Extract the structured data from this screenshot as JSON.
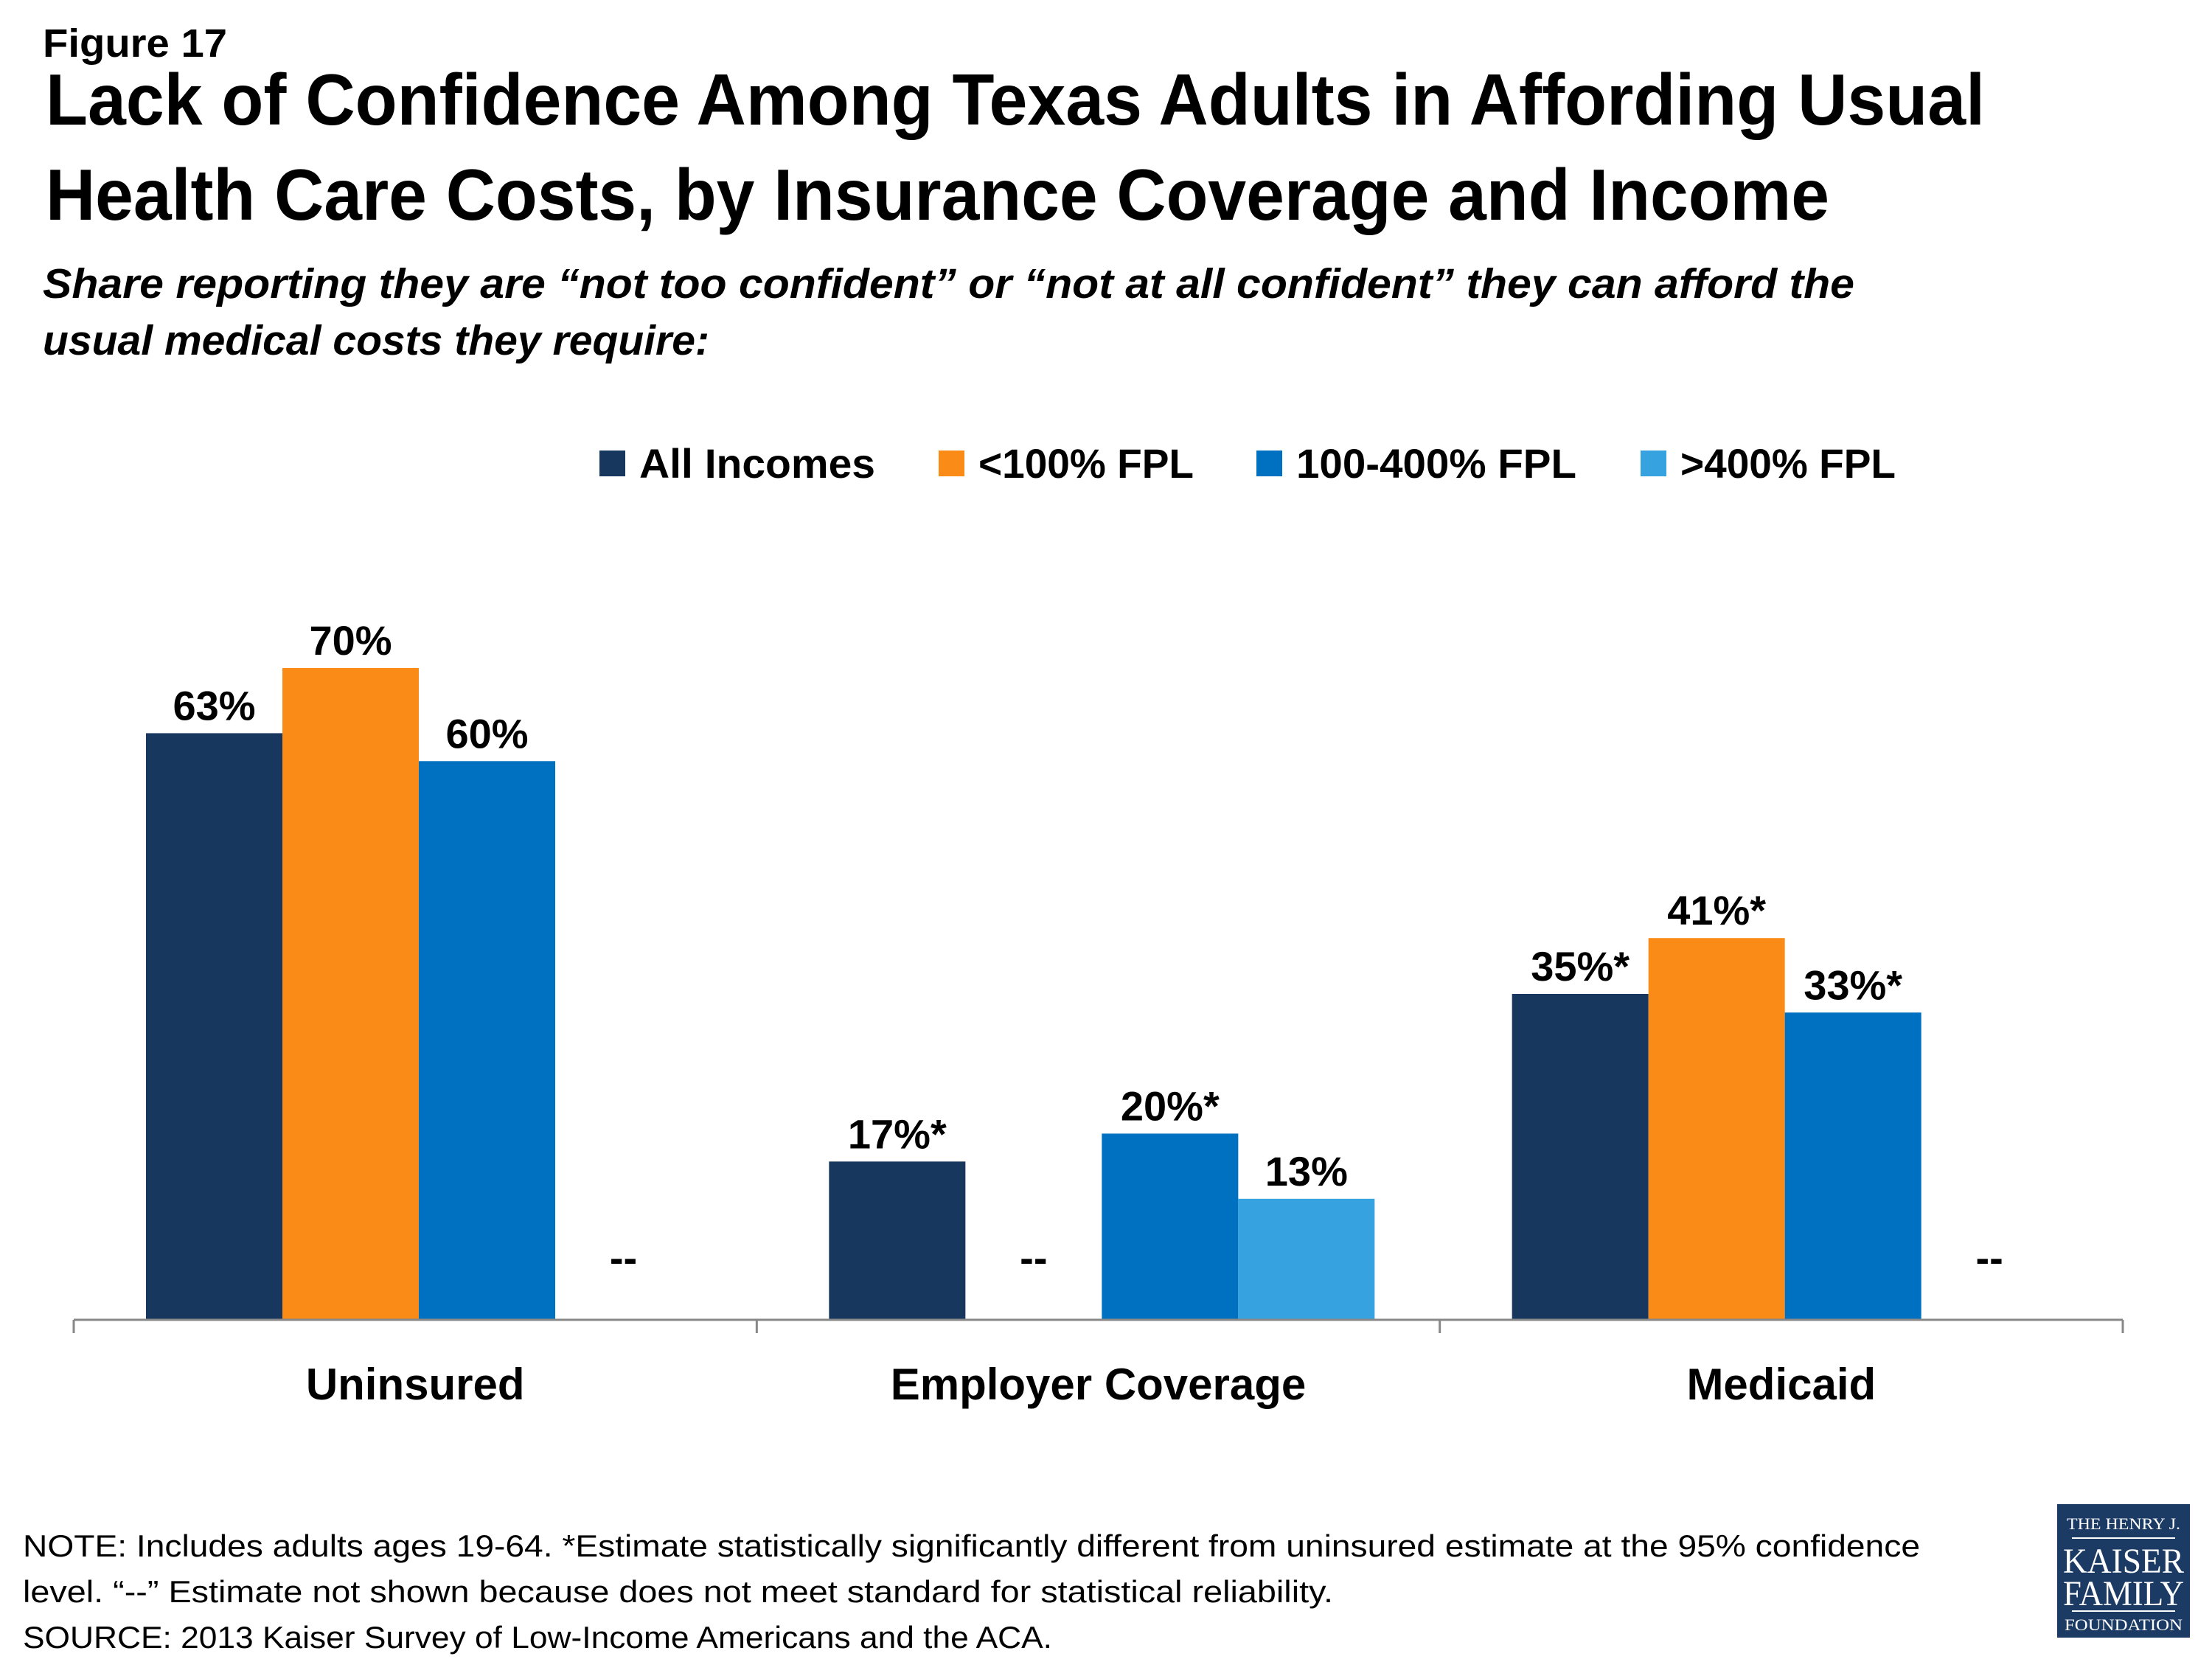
{
  "figure_label": "Figure 17",
  "title_lines": [
    "Lack of Confidence Among Texas Adults in Affording Usual",
    "Health Care Costs, by Insurance Coverage and Income"
  ],
  "subtitle_lines": [
    "Share reporting they are “not too confident” or “not at all confident” they can afford the",
    "usual medical costs they require:"
  ],
  "chart_data": {
    "type": "bar",
    "categories": [
      "Uninsured",
      "Employer Coverage",
      "Medicaid"
    ],
    "series": [
      {
        "name": "All Incomes",
        "color": "#17375e",
        "values": [
          63,
          17,
          35
        ],
        "labels": [
          "63%",
          "17%*",
          "35%*"
        ]
      },
      {
        "name": "<100% FPL",
        "color": "#f98b16",
        "values": [
          70,
          null,
          41
        ],
        "labels": [
          "70%",
          "--",
          "41%*"
        ]
      },
      {
        "name": "100-400% FPL",
        "color": "#0070c0",
        "values": [
          60,
          20,
          33
        ],
        "labels": [
          "60%",
          "20%*",
          "33%*"
        ]
      },
      {
        "name": ">400% FPL",
        "color": "#36a3e0",
        "values": [
          null,
          13,
          null
        ],
        "labels": [
          "--",
          "13%",
          "--"
        ]
      }
    ],
    "ylim": [
      0,
      70
    ],
    "grid": false,
    "legend": "top"
  },
  "notes": [
    "NOTE: Includes adults ages 19-64. *Estimate statistically significantly different from uninsured estimate at the 95% confidence",
    "level. “--” Estimate not shown because does not meet standard for statistical reliability.",
    "SOURCE: 2013 Kaiser Survey of Low-Income Americans and the ACA."
  ],
  "logo": {
    "text": [
      "THE HENRY J.",
      "KAISER",
      "FAMILY",
      "FOUNDATION"
    ],
    "color": "#1b3a64"
  }
}
